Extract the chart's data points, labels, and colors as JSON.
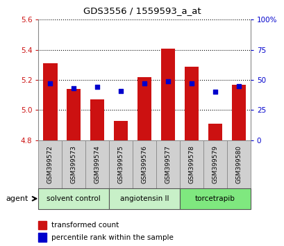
{
  "title": "GDS3556 / 1559593_a_at",
  "samples": [
    "GSM399572",
    "GSM399573",
    "GSM399574",
    "GSM399575",
    "GSM399576",
    "GSM399577",
    "GSM399578",
    "GSM399579",
    "GSM399580"
  ],
  "red_values": [
    5.31,
    5.14,
    5.07,
    4.93,
    5.22,
    5.41,
    5.29,
    4.91,
    5.17
  ],
  "blue_percentiles": [
    47,
    43,
    44,
    41,
    47,
    49,
    47,
    40,
    45
  ],
  "baseline": 4.8,
  "ylim_left": [
    4.8,
    5.6
  ],
  "ylim_right": [
    0,
    100
  ],
  "yticks_left": [
    4.8,
    5.0,
    5.2,
    5.4,
    5.6
  ],
  "yticks_right": [
    0,
    25,
    50,
    75,
    100
  ],
  "agent_groups": [
    {
      "label": "solvent control",
      "start": 0,
      "end": 3,
      "color": "#c8f0c8"
    },
    {
      "label": "angiotensin II",
      "start": 3,
      "end": 6,
      "color": "#c8f0c8"
    },
    {
      "label": "torcetrapib",
      "start": 6,
      "end": 9,
      "color": "#7fe87f"
    }
  ],
  "bar_color": "#cc1111",
  "blue_color": "#0000cc",
  "background_color": "#ffffff",
  "plot_bg": "#ffffff",
  "bar_width": 0.6,
  "grid_color": "#000000",
  "tick_label_color_left": "#cc1111",
  "tick_label_color_right": "#0000cc",
  "sample_box_color": "#d0d0d0",
  "sample_box_edge": "#888888"
}
